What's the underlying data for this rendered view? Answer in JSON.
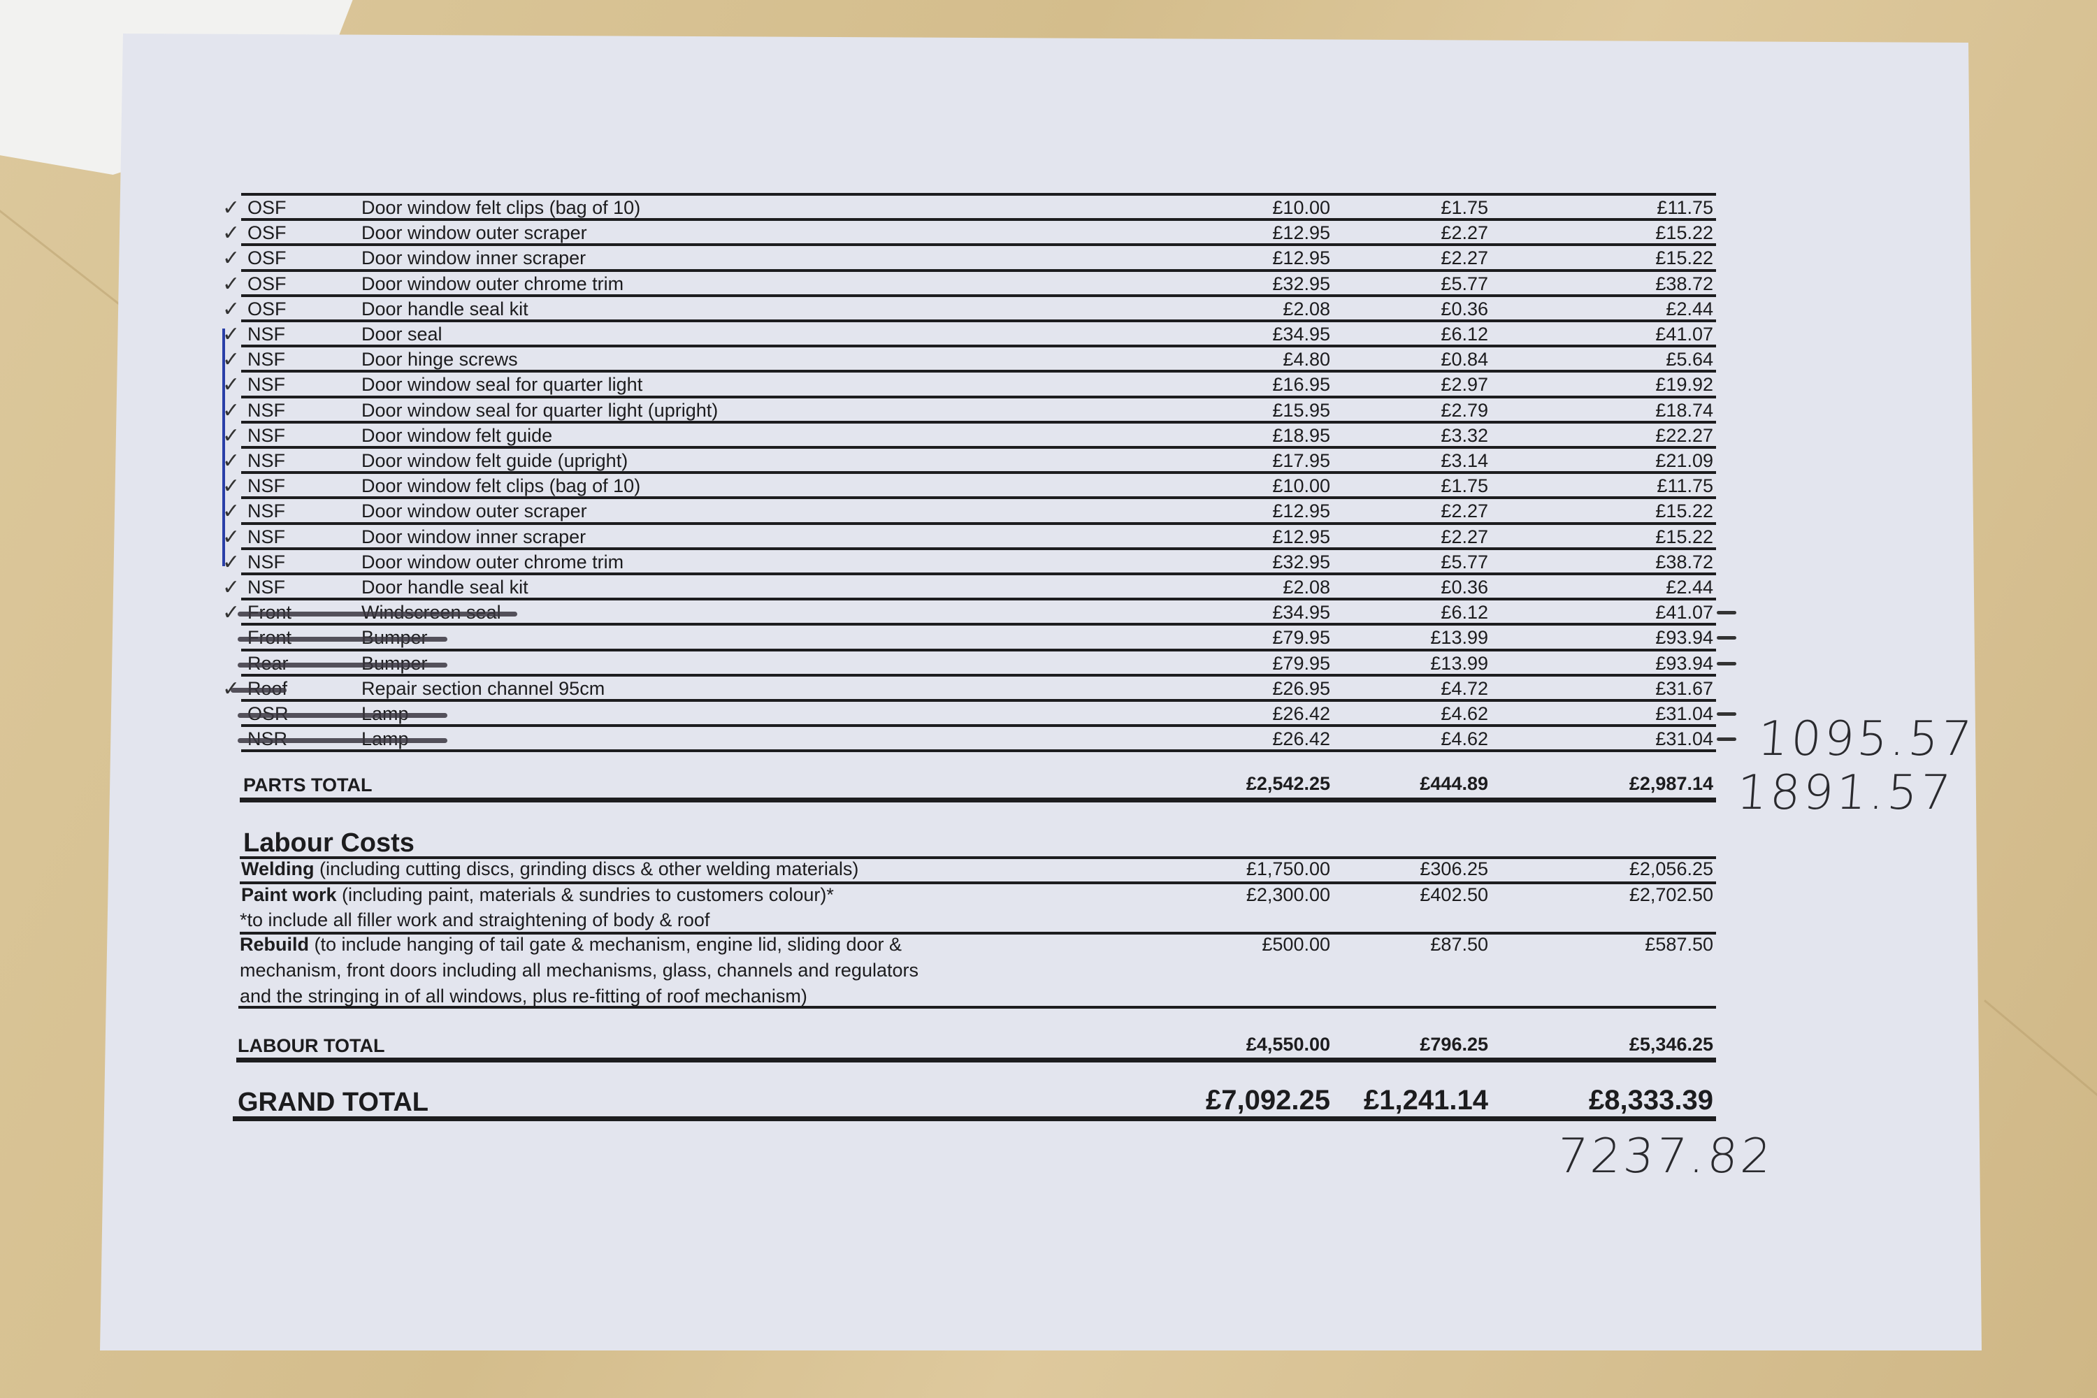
{
  "parts": [
    {
      "loc": "OSF",
      "desc": "Door window felt clips (bag of 10)",
      "net": "£10.00",
      "vat": "£1.75",
      "total": "£11.75",
      "ticked": true
    },
    {
      "loc": "OSF",
      "desc": "Door window outer scraper",
      "net": "£12.95",
      "vat": "£2.27",
      "total": "£15.22",
      "ticked": true
    },
    {
      "loc": "OSF",
      "desc": "Door window inner scraper",
      "net": "£12.95",
      "vat": "£2.27",
      "total": "£15.22",
      "ticked": true
    },
    {
      "loc": "OSF",
      "desc": "Door window outer chrome trim",
      "net": "£32.95",
      "vat": "£5.77",
      "total": "£38.72",
      "ticked": true
    },
    {
      "loc": "OSF",
      "desc": "Door handle seal kit",
      "net": "£2.08",
      "vat": "£0.36",
      "total": "£2.44",
      "ticked": true
    },
    {
      "loc": "NSF",
      "desc": "Door seal",
      "net": "£34.95",
      "vat": "£6.12",
      "total": "£41.07",
      "ticked": true
    },
    {
      "loc": "NSF",
      "desc": "Door hinge screws",
      "net": "£4.80",
      "vat": "£0.84",
      "total": "£5.64",
      "ticked": true
    },
    {
      "loc": "NSF",
      "desc": "Door window seal for quarter light",
      "net": "£16.95",
      "vat": "£2.97",
      "total": "£19.92",
      "ticked": true
    },
    {
      "loc": "NSF",
      "desc": "Door window seal for quarter light (upright)",
      "net": "£15.95",
      "vat": "£2.79",
      "total": "£18.74",
      "ticked": true
    },
    {
      "loc": "NSF",
      "desc": "Door window felt guide",
      "net": "£18.95",
      "vat": "£3.32",
      "total": "£22.27",
      "ticked": true
    },
    {
      "loc": "NSF",
      "desc": "Door window felt guide (upright)",
      "net": "£17.95",
      "vat": "£3.14",
      "total": "£21.09",
      "ticked": true
    },
    {
      "loc": "NSF",
      "desc": "Door window felt clips (bag of 10)",
      "net": "£10.00",
      "vat": "£1.75",
      "total": "£11.75",
      "ticked": true
    },
    {
      "loc": "NSF",
      "desc": "Door window outer scraper",
      "net": "£12.95",
      "vat": "£2.27",
      "total": "£15.22",
      "ticked": true
    },
    {
      "loc": "NSF",
      "desc": "Door window inner scraper",
      "net": "£12.95",
      "vat": "£2.27",
      "total": "£15.22",
      "ticked": true
    },
    {
      "loc": "NSF",
      "desc": "Door window outer chrome trim",
      "net": "£32.95",
      "vat": "£5.77",
      "total": "£38.72",
      "ticked": true
    },
    {
      "loc": "NSF",
      "desc": "Door handle seal kit",
      "net": "£2.08",
      "vat": "£0.36",
      "total": "£2.44",
      "ticked": true
    },
    {
      "loc": "Front",
      "desc": "Windscreen seal",
      "net": "£34.95",
      "vat": "£6.12",
      "total": "£41.07",
      "ticked": true,
      "struck": true
    },
    {
      "loc": "Front",
      "desc": "Bumper",
      "net": "£79.95",
      "vat": "£13.99",
      "total": "£93.94",
      "struck": true
    },
    {
      "loc": "Rear",
      "desc": "Bumper",
      "net": "£79.95",
      "vat": "£13.99",
      "total": "£93.94",
      "struck": true
    },
    {
      "loc": "Roof",
      "desc": "Repair section channel 95cm",
      "net": "£26.95",
      "vat": "£4.72",
      "total": "£31.67",
      "ticked": true,
      "loc_struck": true
    },
    {
      "loc": "OSR",
      "desc": "Lamp",
      "net": "£26.42",
      "vat": "£4.62",
      "total": "£31.04",
      "struck": true
    },
    {
      "loc": "NSR",
      "desc": "Lamp",
      "net": "£26.42",
      "vat": "£4.62",
      "total": "£31.04",
      "struck": true
    }
  ],
  "parts_total": {
    "label": "PARTS TOTAL",
    "net": "£2,542.25",
    "vat": "£444.89",
    "total": "£2,987.14"
  },
  "labour": {
    "heading": "Labour Costs",
    "welding": {
      "title": "Welding",
      "desc": " (including cutting discs, grinding discs & other welding materials)",
      "net": "£1,750.00",
      "vat": "£306.25",
      "total": "£2,056.25"
    },
    "paint": {
      "title": "Paint work",
      "desc": " (including paint, materials & sundries to customers colour)*",
      "note": "*to include all filler work and straightening of body & roof",
      "net": "£2,300.00",
      "vat": "£402.50",
      "total": "£2,702.50"
    },
    "rebuild": {
      "title": "Rebuild",
      "line1": " (to include hanging of tail gate & mechanism, engine lid, sliding door &",
      "line2": "mechanism, front doors including all mechanisms, glass, channels and regulators",
      "line3": "and the stringing in of all windows, plus re-fitting of roof mechanism)",
      "net": "£500.00",
      "vat": "£87.50",
      "total": "£587.50"
    }
  },
  "labour_total": {
    "label": "LABOUR TOTAL",
    "net": "£4,550.00",
    "vat": "£796.25",
    "total": "£5,346.25"
  },
  "grand_total": {
    "label": "GRAND TOTAL",
    "net": "£7,092.25",
    "vat": "£1,241.14",
    "total": "£8,333.39"
  },
  "handwritten": {
    "note1": "1095.57",
    "note2": "1891.57",
    "note3": "7237.82"
  },
  "colors": {
    "paper": "#e3e5ee",
    "ink": "#1c1c1e",
    "pen_blue": "#2a3fa8",
    "wood": "#d8c395"
  }
}
